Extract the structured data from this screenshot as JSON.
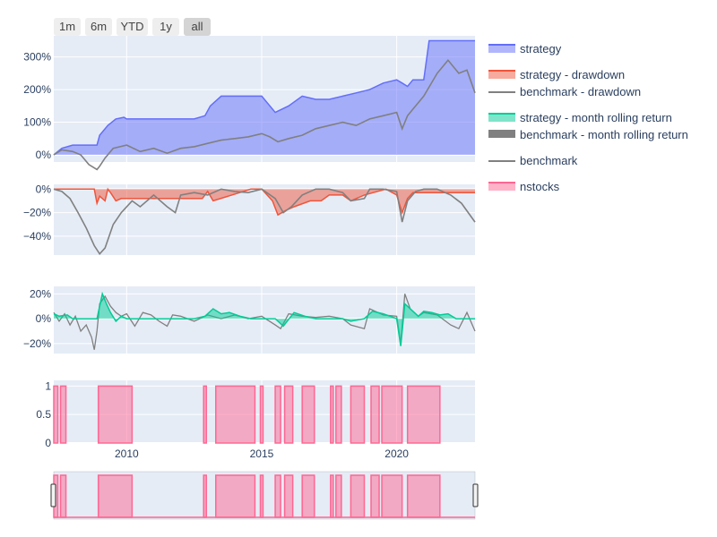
{
  "range_buttons": [
    {
      "label": "1m",
      "active": false
    },
    {
      "label": "6m",
      "active": false
    },
    {
      "label": "YTD",
      "active": false
    },
    {
      "label": "1y",
      "active": false
    },
    {
      "label": "all",
      "active": true
    }
  ],
  "legend": [
    {
      "label": "strategy",
      "color": "#636efa",
      "kind": "fill"
    },
    {
      "label": "strategy - drawdown",
      "color": "#ef553b",
      "kind": "fill"
    },
    {
      "label": "benchmark - drawdown",
      "color": "#808080",
      "kind": "line"
    },
    {
      "label": "strategy - month rolling return",
      "color": "#00cc96",
      "kind": "fill"
    },
    {
      "label": "benchmark - month rolling return",
      "color": "#808080",
      "kind": "thick"
    },
    {
      "label": "benchmark",
      "color": "#808080",
      "kind": "line"
    },
    {
      "label": "nstocks",
      "color": "#ff6692",
      "kind": "fill"
    }
  ],
  "colors": {
    "strategy": "#636efa",
    "strategy_drawdown": "#ef553b",
    "benchmark": "#808080",
    "rolling": "#00cc96",
    "nstocks": "#ff6692",
    "plot_bg": "#e5ecf6",
    "grid": "#ffffff",
    "tick_text": "#2a3f5f"
  },
  "chart_data": [
    {
      "type": "area",
      "name": "returns",
      "xlim": [
        2007.3,
        2022.9
      ],
      "ylim": [
        -0.22,
        3.65
      ],
      "ytick_values": [
        0,
        1,
        2,
        3
      ],
      "ytick_labels": [
        "0%",
        "100%",
        "200%",
        "300%"
      ],
      "series": [
        {
          "name": "strategy",
          "type": "area",
          "x": [
            2007.3,
            2007.6,
            2008.0,
            2008.5,
            2008.9,
            2009.0,
            2009.3,
            2009.6,
            2009.9,
            2010.0,
            2010.5,
            2011.0,
            2011.5,
            2012.0,
            2012.5,
            2012.9,
            2013.1,
            2013.5,
            2014.0,
            2014.5,
            2015.0,
            2015.5,
            2016.0,
            2016.5,
            2017.0,
            2017.5,
            2018.0,
            2018.5,
            2019.0,
            2019.5,
            2020.0,
            2020.2,
            2020.4,
            2020.6,
            2021.0,
            2021.2,
            2021.5,
            2021.8,
            2022.0,
            2022.5,
            2022.9
          ],
          "y": [
            0.0,
            0.2,
            0.3,
            0.3,
            0.3,
            0.6,
            0.9,
            1.1,
            1.15,
            1.1,
            1.1,
            1.1,
            1.1,
            1.1,
            1.1,
            1.2,
            1.5,
            1.8,
            1.8,
            1.8,
            1.8,
            1.3,
            1.5,
            1.8,
            1.7,
            1.7,
            1.8,
            1.9,
            2.0,
            2.2,
            2.3,
            2.2,
            2.1,
            2.3,
            2.3,
            3.5,
            3.5,
            3.5,
            3.5,
            3.5,
            3.5
          ]
        },
        {
          "name": "benchmark",
          "type": "line",
          "x": [
            2007.3,
            2007.6,
            2008.0,
            2008.3,
            2008.6,
            2008.9,
            2009.0,
            2009.2,
            2009.5,
            2010.0,
            2010.5,
            2011.0,
            2011.5,
            2012.0,
            2012.5,
            2013.0,
            2013.5,
            2014.0,
            2014.5,
            2015.0,
            2015.3,
            2015.6,
            2016.0,
            2016.5,
            2017.0,
            2017.5,
            2018.0,
            2018.5,
            2019.0,
            2019.5,
            2020.0,
            2020.2,
            2020.4,
            2020.6,
            2021.0,
            2021.5,
            2021.9,
            2022.3,
            2022.6,
            2022.9
          ],
          "y": [
            0.0,
            0.15,
            0.1,
            0.0,
            -0.3,
            -0.45,
            -0.35,
            -0.1,
            0.2,
            0.3,
            0.1,
            0.2,
            0.05,
            0.2,
            0.25,
            0.35,
            0.45,
            0.5,
            0.55,
            0.65,
            0.55,
            0.4,
            0.5,
            0.6,
            0.8,
            0.9,
            1.0,
            0.9,
            1.1,
            1.2,
            1.3,
            0.8,
            1.2,
            1.4,
            1.8,
            2.5,
            2.9,
            2.5,
            2.6,
            1.9
          ]
        }
      ]
    },
    {
      "type": "area",
      "name": "drawdown",
      "xlim": [
        2007.3,
        2022.9
      ],
      "ylim": [
        -0.56,
        0.04
      ],
      "ytick_values": [
        0,
        -0.2,
        -0.4
      ],
      "ytick_labels": [
        "0%",
        "−20%",
        "−40%"
      ],
      "series": [
        {
          "name": "strategy - drawdown",
          "type": "area",
          "x": [
            2007.3,
            2008.8,
            2008.9,
            2009.0,
            2009.2,
            2009.3,
            2009.4,
            2009.6,
            2009.8,
            2010.2,
            2010.8,
            2012.0,
            2012.8,
            2013.0,
            2013.2,
            2014.6,
            2015.0,
            2015.4,
            2015.6,
            2015.9,
            2016.2,
            2016.8,
            2017.2,
            2017.5,
            2018.0,
            2018.3,
            2018.8,
            2019.6,
            2020.0,
            2020.2,
            2020.4,
            2020.6,
            2021.0,
            2022.9
          ],
          "y": [
            0.0,
            0.0,
            -0.12,
            -0.06,
            -0.1,
            0.0,
            -0.03,
            -0.1,
            -0.08,
            -0.08,
            -0.08,
            -0.08,
            -0.08,
            -0.02,
            -0.1,
            0.0,
            0.0,
            -0.1,
            -0.22,
            -0.18,
            -0.15,
            -0.1,
            -0.1,
            -0.05,
            -0.05,
            -0.1,
            -0.05,
            0.0,
            -0.05,
            -0.2,
            -0.08,
            -0.03,
            -0.03,
            -0.03
          ]
        },
        {
          "name": "benchmark - drawdown",
          "type": "line",
          "x": [
            2007.3,
            2007.6,
            2007.9,
            2008.2,
            2008.5,
            2008.8,
            2009.0,
            2009.2,
            2009.5,
            2009.8,
            2010.2,
            2010.5,
            2011.0,
            2011.5,
            2011.8,
            2012.0,
            2012.5,
            2013.0,
            2013.5,
            2014.0,
            2014.5,
            2015.0,
            2015.5,
            2015.8,
            2016.1,
            2016.5,
            2017.0,
            2017.5,
            2018.0,
            2018.3,
            2018.8,
            2019.0,
            2019.5,
            2020.0,
            2020.2,
            2020.4,
            2020.7,
            2021.0,
            2021.5,
            2022.0,
            2022.4,
            2022.9
          ],
          "y": [
            0.0,
            -0.02,
            -0.08,
            -0.2,
            -0.33,
            -0.48,
            -0.55,
            -0.5,
            -0.3,
            -0.2,
            -0.1,
            -0.15,
            -0.05,
            -0.15,
            -0.2,
            -0.05,
            -0.03,
            -0.05,
            0.0,
            -0.02,
            -0.03,
            0.0,
            -0.08,
            -0.2,
            -0.15,
            -0.05,
            0.0,
            0.0,
            -0.03,
            -0.1,
            -0.08,
            0.0,
            0.0,
            -0.02,
            -0.28,
            -0.1,
            -0.02,
            0.0,
            0.0,
            -0.05,
            -0.12,
            -0.28
          ]
        }
      ]
    },
    {
      "type": "area",
      "name": "rolling",
      "xlim": [
        2007.3,
        2022.9
      ],
      "ylim": [
        -0.28,
        0.26
      ],
      "ytick_values": [
        0.2,
        0,
        -0.2
      ],
      "ytick_labels": [
        "20%",
        "0%",
        "−20%"
      ],
      "series": [
        {
          "name": "benchmark - month rolling return",
          "type": "line",
          "x": [
            2007.3,
            2007.5,
            2007.7,
            2007.9,
            2008.1,
            2008.3,
            2008.5,
            2008.7,
            2008.8,
            2008.9,
            2009.0,
            2009.2,
            2009.4,
            2009.6,
            2009.8,
            2010.0,
            2010.3,
            2010.6,
            2010.9,
            2011.2,
            2011.5,
            2011.7,
            2012.0,
            2012.5,
            2013.0,
            2013.5,
            2014.0,
            2014.5,
            2015.0,
            2015.5,
            2015.7,
            2016.0,
            2016.5,
            2017.0,
            2017.5,
            2018.0,
            2018.3,
            2018.8,
            2019.0,
            2019.5,
            2020.0,
            2020.15,
            2020.3,
            2020.5,
            2020.8,
            2021.0,
            2021.5,
            2022.0,
            2022.3,
            2022.6,
            2022.9
          ],
          "y": [
            0.05,
            -0.02,
            0.04,
            -0.05,
            0.02,
            -0.1,
            -0.05,
            -0.15,
            -0.25,
            -0.1,
            0.12,
            0.18,
            0.1,
            0.05,
            0.02,
            0.04,
            -0.06,
            0.05,
            0.03,
            -0.02,
            -0.06,
            0.03,
            0.02,
            -0.02,
            0.03,
            0.0,
            0.03,
            0.0,
            0.02,
            -0.05,
            -0.08,
            0.04,
            0.02,
            0.01,
            0.02,
            0.0,
            -0.05,
            -0.08,
            0.08,
            0.03,
            0.02,
            -0.2,
            0.2,
            0.08,
            0.02,
            0.05,
            0.03,
            -0.05,
            -0.08,
            0.05,
            -0.1
          ]
        },
        {
          "name": "strategy - month rolling return",
          "type": "area",
          "x": [
            2007.3,
            2007.5,
            2007.8,
            2008.0,
            2008.3,
            2008.6,
            2008.9,
            2009.0,
            2009.1,
            2009.25,
            2009.4,
            2009.6,
            2009.8,
            2010.0,
            2010.5,
            2011.0,
            2011.5,
            2012.0,
            2012.5,
            2012.9,
            2013.2,
            2013.5,
            2013.8,
            2014.2,
            2014.6,
            2015.0,
            2015.5,
            2015.8,
            2016.2,
            2016.6,
            2017.0,
            2017.5,
            2018.0,
            2018.3,
            2018.8,
            2019.1,
            2019.5,
            2020.0,
            2020.15,
            2020.3,
            2020.5,
            2020.8,
            2021.0,
            2021.3,
            2021.6,
            2021.9,
            2022.2,
            2022.9
          ],
          "y": [
            0.04,
            0.02,
            0.03,
            0.0,
            0.0,
            0.0,
            0.0,
            0.1,
            0.2,
            0.12,
            0.05,
            -0.02,
            0.02,
            0.0,
            0.0,
            0.0,
            0.0,
            0.0,
            0.0,
            0.02,
            0.08,
            0.04,
            0.05,
            0.02,
            0.0,
            0.0,
            0.0,
            -0.06,
            0.05,
            0.02,
            0.0,
            0.0,
            0.0,
            -0.02,
            0.0,
            0.06,
            0.04,
            0.0,
            -0.22,
            0.12,
            0.08,
            0.02,
            0.06,
            0.05,
            0.03,
            0.04,
            0.0,
            0.0
          ]
        }
      ]
    },
    {
      "type": "area",
      "name": "nstocks",
      "xlim": [
        2007.3,
        2022.9
      ],
      "ylim": [
        0,
        1.1
      ],
      "ytick_values": [
        0,
        0.5,
        1
      ],
      "ytick_labels": [
        "0",
        "0.5",
        "1"
      ],
      "xtick_values": [
        2010,
        2015,
        2020
      ],
      "xtick_labels": [
        "2010",
        "2015",
        "2020"
      ],
      "series": [
        {
          "name": "nstocks",
          "type": "area",
          "intervals": [
            [
              2007.3,
              2007.45
            ],
            [
              2007.55,
              2007.75
            ],
            [
              2008.95,
              2010.2
            ],
            [
              2012.85,
              2012.95
            ],
            [
              2013.3,
              2014.75
            ],
            [
              2014.95,
              2015.05
            ],
            [
              2015.5,
              2015.7
            ],
            [
              2015.85,
              2016.15
            ],
            [
              2016.5,
              2016.95
            ],
            [
              2017.55,
              2017.65
            ],
            [
              2017.75,
              2017.95
            ],
            [
              2018.3,
              2018.8
            ],
            [
              2019.05,
              2019.35
            ],
            [
              2019.45,
              2020.2
            ],
            [
              2020.4,
              2021.6
            ]
          ]
        }
      ]
    }
  ]
}
